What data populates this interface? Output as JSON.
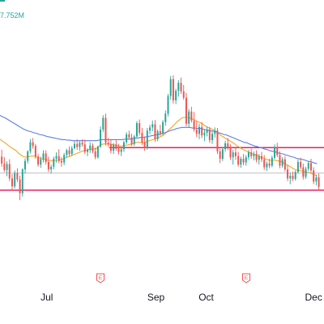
{
  "header": {
    "readout_text": "7.752M",
    "corner_label": "",
    "readout_color": "#26a69a"
  },
  "colors": {
    "up": "#26a69a",
    "down": "#ef5350",
    "ma_fast": "#f5a623",
    "ma_slow": "#5b7ee5",
    "level_line": "#e91e63",
    "faint_line": "#b2b5be",
    "event_marker": "#ef5350"
  },
  "event_markers": [
    {
      "label": "E",
      "x": "2024-08-01"
    },
    {
      "label": "E",
      "x": "2024-10-24"
    }
  ],
  "chart_data": {
    "type": "candlestick",
    "title": "",
    "xlabel": "",
    "ylabel": "",
    "x_range": [
      "2024-06-04",
      "2024-12-08"
    ],
    "ylim": [
      38,
      92
    ],
    "x_tick_labels": [
      {
        "label": "Jul",
        "x": "2024-07-01"
      },
      {
        "label": "Sep",
        "x": "2024-09-02"
      },
      {
        "label": "Oct",
        "x": "2024-10-01"
      },
      {
        "label": "Dec",
        "x": "2024-12-02"
      }
    ],
    "horizontal_levels": [
      {
        "value": 64.2,
        "kind": "resistance",
        "x_start": "2024-08-06"
      },
      {
        "value": 56.2,
        "kind": "support",
        "x_start": "2024-06-04"
      },
      {
        "value": 59.4,
        "kind": "reference",
        "x_start": "2024-06-04"
      }
    ],
    "series": [
      {
        "type": "candles",
        "x_start": "2024-06-05",
        "ohlc": [
          [
            62.5,
            63.8,
            60.6,
            61.2
          ],
          [
            61.2,
            62.4,
            59.6,
            60.0
          ],
          [
            60.0,
            61.6,
            58.8,
            61.1
          ],
          [
            61.1,
            62.0,
            57.9,
            58.4
          ],
          [
            58.4,
            59.2,
            56.1,
            56.9
          ],
          [
            56.9,
            59.9,
            56.5,
            59.4
          ],
          [
            59.4,
            60.3,
            57.7,
            58.2
          ],
          [
            58.2,
            58.9,
            54.3,
            55.6
          ],
          [
            55.6,
            60.3,
            55.0,
            60.1
          ],
          [
            60.1,
            62.2,
            59.3,
            61.7
          ],
          [
            61.7,
            63.7,
            61.2,
            63.5
          ],
          [
            63.5,
            65.8,
            63.1,
            65.2
          ],
          [
            65.2,
            66.0,
            64.0,
            64.5
          ],
          [
            64.5,
            64.9,
            62.1,
            62.5
          ],
          [
            62.5,
            63.0,
            60.6,
            61.0
          ],
          [
            61.0,
            62.5,
            60.4,
            62.0
          ],
          [
            62.0,
            63.7,
            61.4,
            63.1
          ],
          [
            63.1,
            63.7,
            61.0,
            61.5
          ],
          [
            61.5,
            62.5,
            59.6,
            60.1
          ],
          [
            60.1,
            61.0,
            59.3,
            60.6
          ],
          [
            60.6,
            62.5,
            60.1,
            62.1
          ],
          [
            62.1,
            63.3,
            61.4,
            62.6
          ],
          [
            62.6,
            63.9,
            61.3,
            61.7
          ],
          [
            61.7,
            62.4,
            60.6,
            61.4
          ],
          [
            61.4,
            63.2,
            60.9,
            62.8
          ],
          [
            62.8,
            64.0,
            62.3,
            63.7
          ],
          [
            63.7,
            64.4,
            62.5,
            63.0
          ],
          [
            63.0,
            64.5,
            62.6,
            64.1
          ],
          [
            64.1,
            65.4,
            63.9,
            64.9
          ],
          [
            64.9,
            65.8,
            63.8,
            64.3
          ],
          [
            64.3,
            65.5,
            63.6,
            65.1
          ],
          [
            65.1,
            65.8,
            64.4,
            64.8
          ],
          [
            64.8,
            65.7,
            63.0,
            63.4
          ],
          [
            63.4,
            64.1,
            62.6,
            63.8
          ],
          [
            63.8,
            65.2,
            63.2,
            64.6
          ],
          [
            64.6,
            65.0,
            63.1,
            63.5
          ],
          [
            63.5,
            64.2,
            62.0,
            62.4
          ],
          [
            62.4,
            64.6,
            62.1,
            64.4
          ],
          [
            64.4,
            68.2,
            64.1,
            67.6
          ],
          [
            67.6,
            70.3,
            67.1,
            69.8
          ],
          [
            69.8,
            70.6,
            64.6,
            65.1
          ],
          [
            65.1,
            66.0,
            64.4,
            64.8
          ],
          [
            64.8,
            65.6,
            63.1,
            63.6
          ],
          [
            63.6,
            65.1,
            63.0,
            64.8
          ],
          [
            64.8,
            65.6,
            63.6,
            64.0
          ],
          [
            64.0,
            64.9,
            62.9,
            63.4
          ],
          [
            63.4,
            64.3,
            62.6,
            63.9
          ],
          [
            63.9,
            65.5,
            63.4,
            65.2
          ],
          [
            65.2,
            67.1,
            64.9,
            66.7
          ],
          [
            66.7,
            67.4,
            65.7,
            66.1
          ],
          [
            66.1,
            66.8,
            64.5,
            64.9
          ],
          [
            64.9,
            66.6,
            64.5,
            66.3
          ],
          [
            66.3,
            69.2,
            66.1,
            68.8
          ],
          [
            68.8,
            69.5,
            66.5,
            67.0
          ],
          [
            67.0,
            67.9,
            64.7,
            65.2
          ],
          [
            65.2,
            66.3,
            63.6,
            64.1
          ],
          [
            64.1,
            67.9,
            63.8,
            67.4
          ],
          [
            67.4,
            68.5,
            66.7,
            68.0
          ],
          [
            68.0,
            69.3,
            67.3,
            68.6
          ],
          [
            68.6,
            69.4,
            65.3,
            65.8
          ],
          [
            65.8,
            67.6,
            65.4,
            67.3
          ],
          [
            67.3,
            68.5,
            66.4,
            66.9
          ],
          [
            66.9,
            69.4,
            66.6,
            69.0
          ],
          [
            69.0,
            71.2,
            68.3,
            70.6
          ],
          [
            70.6,
            74.3,
            70.1,
            73.9
          ],
          [
            73.9,
            77.7,
            73.2,
            77.1
          ],
          [
            77.1,
            77.8,
            72.5,
            73.1
          ],
          [
            73.1,
            75.3,
            72.4,
            74.9
          ],
          [
            74.9,
            76.9,
            73.8,
            76.4
          ],
          [
            76.4,
            77.4,
            74.3,
            74.8
          ],
          [
            74.8,
            76.0,
            73.2,
            73.6
          ],
          [
            73.6,
            74.5,
            68.2,
            68.7
          ],
          [
            68.7,
            71.5,
            68.0,
            71.0
          ],
          [
            71.0,
            71.9,
            68.9,
            69.3
          ],
          [
            69.3,
            70.9,
            67.2,
            67.6
          ],
          [
            67.6,
            69.2,
            66.2,
            66.8
          ],
          [
            66.8,
            68.7,
            65.8,
            68.1
          ],
          [
            68.1,
            69.0,
            66.0,
            66.5
          ],
          [
            66.5,
            67.6,
            65.4,
            67.0
          ],
          [
            67.0,
            68.2,
            66.3,
            67.6
          ],
          [
            67.6,
            68.1,
            65.1,
            65.6
          ],
          [
            65.6,
            67.4,
            64.9,
            66.8
          ],
          [
            66.8,
            68.0,
            66.1,
            67.4
          ],
          [
            67.4,
            67.9,
            63.0,
            63.5
          ],
          [
            63.5,
            64.0,
            61.3,
            62.1
          ],
          [
            62.1,
            64.3,
            61.7,
            63.9
          ],
          [
            63.9,
            65.5,
            63.4,
            65.0
          ],
          [
            65.0,
            66.0,
            63.7,
            64.2
          ],
          [
            64.2,
            64.8,
            61.9,
            62.4
          ],
          [
            62.4,
            63.8,
            61.0,
            63.3
          ],
          [
            63.3,
            64.2,
            61.9,
            62.6
          ],
          [
            62.6,
            63.4,
            60.6,
            61.0
          ],
          [
            61.0,
            62.5,
            60.4,
            62.1
          ],
          [
            62.1,
            63.0,
            60.9,
            61.4
          ],
          [
            61.4,
            62.8,
            60.8,
            62.4
          ],
          [
            62.4,
            63.8,
            61.9,
            63.3
          ],
          [
            63.3,
            64.0,
            62.1,
            62.6
          ],
          [
            62.6,
            63.5,
            61.8,
            63.0
          ],
          [
            63.0,
            63.7,
            61.4,
            61.9
          ],
          [
            61.9,
            63.0,
            61.0,
            62.6
          ],
          [
            62.6,
            63.4,
            61.5,
            62.0
          ],
          [
            62.0,
            62.8,
            60.0,
            60.5
          ],
          [
            60.5,
            61.6,
            59.8,
            61.2
          ],
          [
            61.2,
            62.1,
            60.3,
            60.8
          ],
          [
            60.8,
            62.7,
            60.5,
            62.3
          ],
          [
            62.3,
            64.8,
            62.0,
            64.3
          ],
          [
            64.3,
            65.1,
            62.4,
            62.8
          ],
          [
            62.8,
            63.5,
            60.3,
            60.8
          ],
          [
            60.8,
            62.4,
            60.4,
            62.0
          ],
          [
            62.0,
            62.6,
            59.7,
            60.1
          ],
          [
            60.1,
            60.9,
            57.9,
            58.4
          ],
          [
            58.4,
            59.5,
            57.3,
            58.9
          ],
          [
            58.9,
            59.7,
            57.9,
            58.3
          ],
          [
            58.3,
            59.9,
            58.0,
            59.6
          ],
          [
            59.6,
            62.0,
            59.3,
            61.5
          ],
          [
            61.5,
            62.3,
            60.1,
            60.5
          ],
          [
            60.5,
            61.2,
            58.2,
            58.7
          ],
          [
            58.7,
            60.6,
            58.3,
            60.2
          ],
          [
            60.2,
            61.7,
            59.8,
            61.3
          ],
          [
            61.3,
            62.1,
            59.4,
            59.9
          ],
          [
            59.9,
            60.5,
            57.3,
            57.8
          ],
          [
            57.8,
            59.1,
            57.1,
            58.6
          ],
          [
            58.6,
            59.3,
            56.2,
            56.8
          ]
        ]
      },
      {
        "name": "",
        "type": "line",
        "role": "ma_fast",
        "x_start": "2024-06-04",
        "values": [
          65.8,
          65.4,
          65.1,
          64.7,
          64.3,
          64.0,
          63.7,
          63.2,
          62.8,
          62.5,
          62.4,
          62.5,
          62.6,
          62.6,
          62.5,
          62.3,
          62.1,
          62.0,
          61.9,
          61.8,
          61.7,
          61.8,
          61.8,
          61.9,
          62.0,
          62.2,
          62.4,
          62.6,
          62.8,
          63.0,
          63.2,
          63.4,
          63.6,
          63.7,
          63.8,
          63.9,
          63.9,
          64.0,
          64.4,
          64.8,
          64.9,
          64.9,
          64.9,
          64.8,
          64.7,
          64.6,
          64.5,
          64.5,
          64.6,
          64.7,
          64.8,
          64.9,
          65.1,
          65.2,
          65.2,
          65.1,
          65.2,
          65.4,
          65.6,
          65.7,
          65.9,
          66.1,
          66.3,
          66.6,
          67.0,
          67.6,
          68.0,
          68.5,
          69.0,
          69.4,
          69.8,
          69.9,
          69.9,
          69.8,
          69.6,
          69.4,
          69.1,
          68.9,
          68.6,
          68.3,
          68.0,
          67.8,
          67.6,
          67.3,
          66.9,
          66.5,
          66.2,
          65.9,
          65.6,
          65.3,
          65.0,
          64.6,
          64.3,
          64.0,
          63.7,
          63.5,
          63.3,
          63.1,
          62.9,
          62.7,
          62.5,
          62.3,
          62.1,
          61.9,
          61.8,
          61.8,
          61.8,
          61.7,
          61.6,
          61.4,
          61.1,
          60.8,
          60.5,
          60.2,
          60.0,
          59.9,
          59.8,
          59.7,
          59.6,
          59.5,
          59.3,
          59.1,
          58.9
        ]
      },
      {
        "name": "",
        "type": "line",
        "role": "ma_slow",
        "x_start": "2024-06-04",
        "values": [
          70.3,
          70.0,
          69.8,
          69.5,
          69.2,
          68.9,
          68.6,
          68.3,
          68.0,
          67.7,
          67.5,
          67.3,
          67.2,
          67.0,
          66.9,
          66.7,
          66.6,
          66.5,
          66.3,
          66.2,
          66.1,
          66.0,
          65.9,
          65.8,
          65.7,
          65.7,
          65.6,
          65.6,
          65.5,
          65.5,
          65.5,
          65.5,
          65.5,
          65.5,
          65.5,
          65.5,
          65.5,
          65.5,
          65.6,
          65.7,
          65.7,
          65.7,
          65.7,
          65.7,
          65.7,
          65.7,
          65.7,
          65.7,
          65.8,
          65.8,
          65.8,
          65.9,
          66.0,
          66.0,
          66.1,
          66.1,
          66.2,
          66.3,
          66.4,
          66.5,
          66.6,
          66.7,
          66.8,
          66.9,
          67.1,
          67.3,
          67.5,
          67.6,
          67.8,
          67.9,
          68.0,
          68.0,
          68.0,
          68.0,
          67.9,
          67.9,
          67.8,
          67.8,
          67.7,
          67.6,
          67.5,
          67.4,
          67.3,
          67.2,
          67.0,
          66.9,
          66.7,
          66.6,
          66.4,
          66.2,
          66.0,
          65.8,
          65.6,
          65.4,
          65.2,
          65.1,
          64.9,
          64.7,
          64.5,
          64.4,
          64.2,
          64.1,
          63.9,
          63.8,
          63.6,
          63.5,
          63.4,
          63.2,
          63.1,
          63.0,
          62.8,
          62.7,
          62.5,
          62.4,
          62.2,
          62.1,
          62.0,
          61.9,
          61.7,
          61.6,
          61.5,
          61.3,
          61.2
        ]
      }
    ]
  }
}
